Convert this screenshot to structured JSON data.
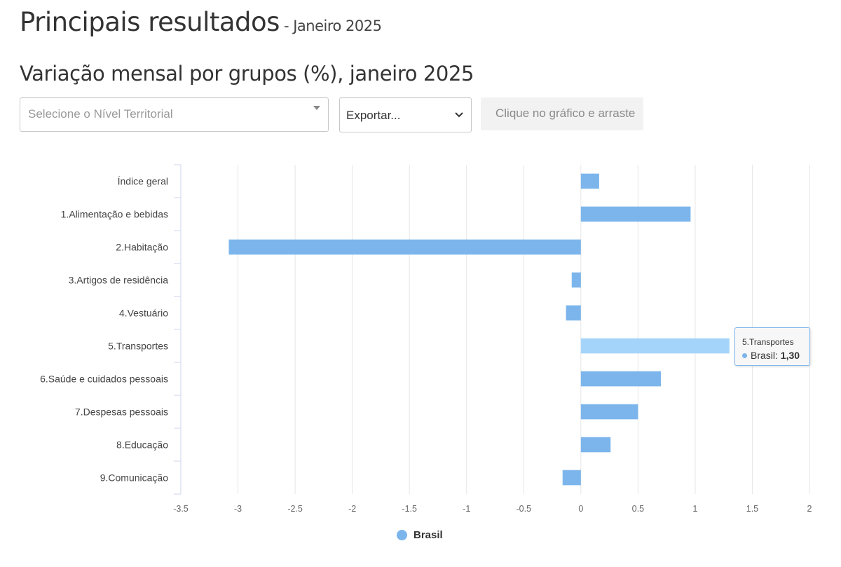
{
  "header": {
    "title": "Principais resultados",
    "subtitle": "- Janeiro 2025"
  },
  "section": {
    "title": "Variação mensal por grupos (%), janeiro 2025"
  },
  "controls": {
    "territorial_placeholder": "Selecione o Nível Territorial",
    "export_value": "Exportar...",
    "hint": "Clique no gráfico e arraste"
  },
  "tooltip": {
    "category": "5.Transportes",
    "series": "Brasil:",
    "value": "1,30"
  },
  "legend": {
    "label": "Brasil"
  },
  "chart_data": {
    "type": "bar",
    "orientation": "horizontal",
    "categories": [
      "Índice geral",
      "1.Alimentação e bebidas",
      "2.Habitação",
      "3.Artigos de residência",
      "4.Vestuário",
      "5.Transportes",
      "6.Saúde e cuidados pessoais",
      "7.Despesas pessoais",
      "8.Educação",
      "9.Comunicação"
    ],
    "series": [
      {
        "name": "Brasil",
        "values": [
          0.16,
          0.96,
          -3.08,
          -0.08,
          -0.13,
          1.3,
          0.7,
          0.5,
          0.26,
          -0.16
        ],
        "color": "#7cb5ec",
        "highlight_color": "#a5d4fa"
      }
    ],
    "highlighted_index": 5,
    "xlim": [
      -3.5,
      2
    ],
    "x_ticks": [
      -3.5,
      -3,
      -2.5,
      -2,
      -1.5,
      -1,
      -0.5,
      0,
      0.5,
      1,
      1.5,
      2
    ],
    "x_tick_labels": [
      "-3.5",
      "-3",
      "-2.5",
      "-2",
      "-1.5",
      "-1",
      "-0.5",
      "0",
      "0.5",
      "1",
      "1.5",
      "2"
    ],
    "grid": true,
    "legend_position": "bottom-center"
  }
}
